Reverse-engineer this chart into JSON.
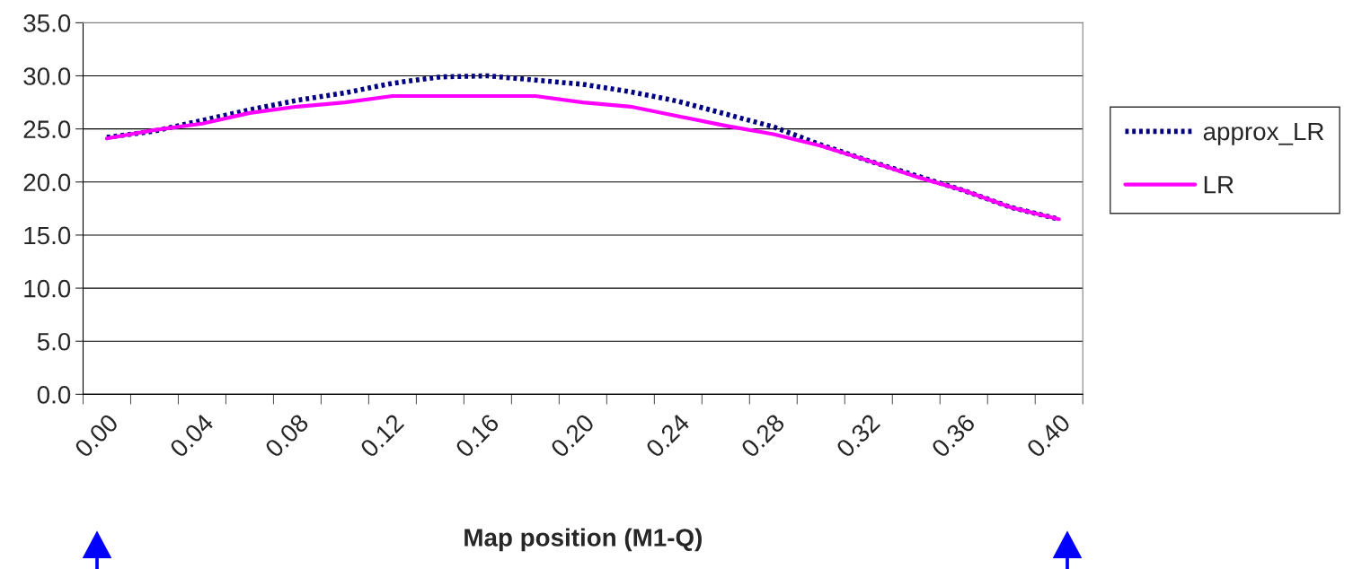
{
  "chart_data": {
    "type": "line",
    "xlabel": "Map position (M1-Q)",
    "categories": [
      "0.00",
      null,
      "0.04",
      null,
      "0.08",
      null,
      "0.12",
      null,
      "0.16",
      null,
      "0.20",
      null,
      "0.24",
      null,
      "0.28",
      null,
      "0.32",
      null,
      "0.36",
      null,
      "0.40"
    ],
    "series": [
      {
        "name": "approx_LR",
        "color": "#000080",
        "line_style": "dotted",
        "values": [
          24.2,
          24.8,
          25.8,
          26.8,
          27.7,
          28.4,
          29.3,
          29.9,
          30.0,
          29.6,
          29.2,
          28.5,
          27.6,
          26.4,
          25.2,
          23.5,
          22.0,
          20.6,
          19.2,
          17.6,
          16.5
        ]
      },
      {
        "name": "LR",
        "color": "#ff00ff",
        "line_style": "solid",
        "values": [
          24.1,
          24.9,
          25.5,
          26.5,
          27.1,
          27.5,
          28.1,
          28.1,
          28.1,
          28.1,
          27.5,
          27.1,
          26.2,
          25.3,
          24.5,
          23.4,
          22.0,
          20.5,
          19.2,
          17.6,
          16.5
        ]
      }
    ],
    "ylim": [
      0,
      35
    ],
    "yticks": [
      {
        "value": 0,
        "label": "0.0"
      },
      {
        "value": 5,
        "label": "5.0"
      },
      {
        "value": 10,
        "label": "10.0"
      },
      {
        "value": 15,
        "label": "15.0"
      },
      {
        "value": 20,
        "label": "20.0"
      },
      {
        "value": 25,
        "label": "25.0"
      },
      {
        "value": 30,
        "label": "30.0"
      },
      {
        "value": 35,
        "label": "35.0"
      }
    ],
    "grid": "y",
    "legend": "right"
  }
}
